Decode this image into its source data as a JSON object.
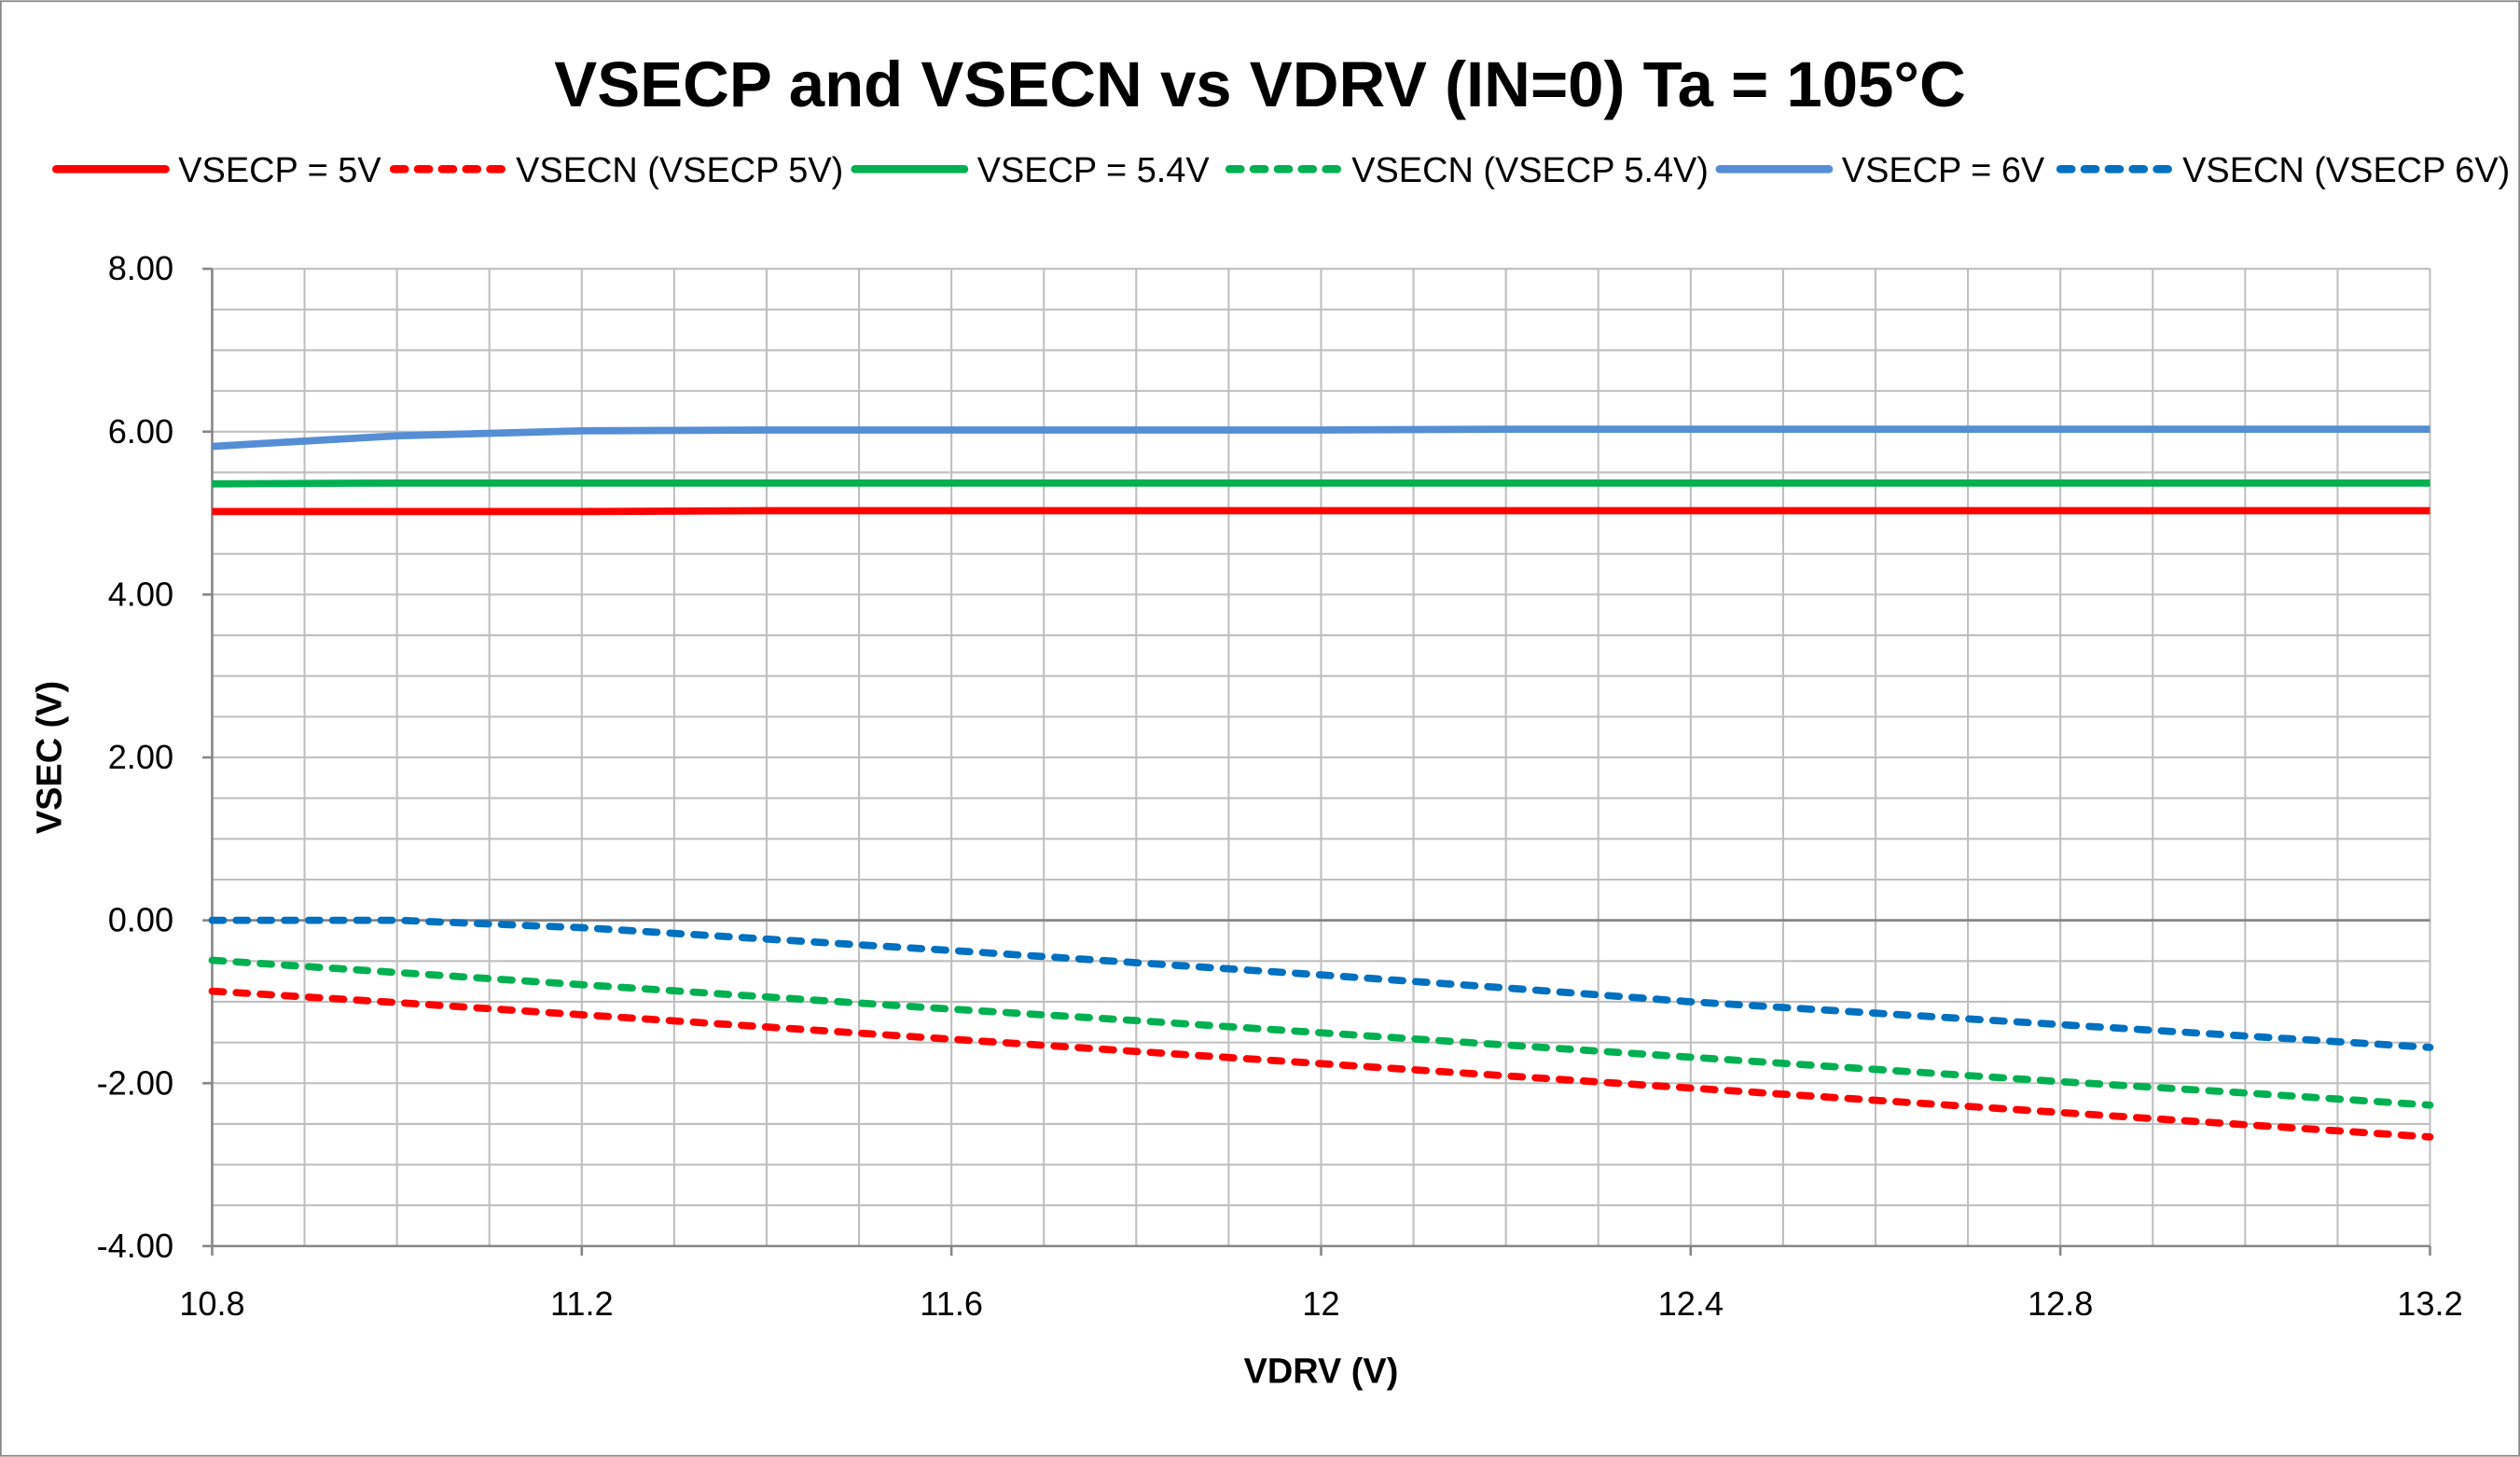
{
  "chart_data": {
    "type": "line",
    "title": "VSECP and VSECN vs VDRV (IN=0) Ta = 105°C",
    "xlabel": "VDRV (V)",
    "ylabel": "VSEC (V)",
    "xlim": [
      10.8,
      13.2
    ],
    "ylim": [
      -4,
      8
    ],
    "x_ticks": [
      "10.8",
      "11.2",
      "11.6",
      "12",
      "12.4",
      "12.8",
      "13.2"
    ],
    "y_ticks": [
      "8.00",
      "6.00",
      "4.00",
      "2.00",
      "0.00",
      "-2.00",
      "-4.00"
    ],
    "grid": true,
    "legend_position": "top",
    "x": [
      10.8,
      11.0,
      11.2,
      11.4,
      11.6,
      11.8,
      12.0,
      12.2,
      12.4,
      12.6,
      12.8,
      13.0,
      13.2
    ],
    "series": [
      {
        "name": "VSECP = 5V",
        "color": "#FF0000",
        "style": "solid",
        "values": [
          5.02,
          5.02,
          5.02,
          5.03,
          5.03,
          5.03,
          5.03,
          5.03,
          5.03,
          5.03,
          5.03,
          5.03,
          5.03
        ]
      },
      {
        "name": "VSECN (VSECP 5V)",
        "color": "#FF0000",
        "style": "dashed",
        "values": [
          -0.87,
          -1.01,
          -1.16,
          -1.31,
          -1.46,
          -1.61,
          -1.76,
          -1.91,
          -2.06,
          -2.21,
          -2.36,
          -2.51,
          -2.66
        ]
      },
      {
        "name": "VSECP = 5.4V",
        "color": "#00B050",
        "style": "solid",
        "values": [
          5.36,
          5.37,
          5.37,
          5.37,
          5.37,
          5.37,
          5.37,
          5.37,
          5.37,
          5.37,
          5.37,
          5.37,
          5.37
        ]
      },
      {
        "name": "VSECN (VSECP 5.4V)",
        "color": "#00B050",
        "style": "dashed",
        "values": [
          -0.49,
          -0.64,
          -0.79,
          -0.94,
          -1.09,
          -1.23,
          -1.38,
          -1.53,
          -1.68,
          -1.83,
          -1.98,
          -2.12,
          -2.27
        ]
      },
      {
        "name": "VSECP = 6V",
        "color": "#558ED5",
        "style": "solid",
        "values": [
          5.82,
          5.95,
          6.01,
          6.02,
          6.02,
          6.02,
          6.02,
          6.03,
          6.03,
          6.03,
          6.03,
          6.03,
          6.03
        ]
      },
      {
        "name": "VSECN (VSECP 6V)",
        "color": "#0070C0",
        "style": "dashed",
        "values": [
          0.0,
          0.0,
          -0.09,
          -0.23,
          -0.37,
          -0.52,
          -0.67,
          -0.83,
          -1.0,
          -1.14,
          -1.28,
          -1.42,
          -1.56
        ]
      }
    ]
  }
}
